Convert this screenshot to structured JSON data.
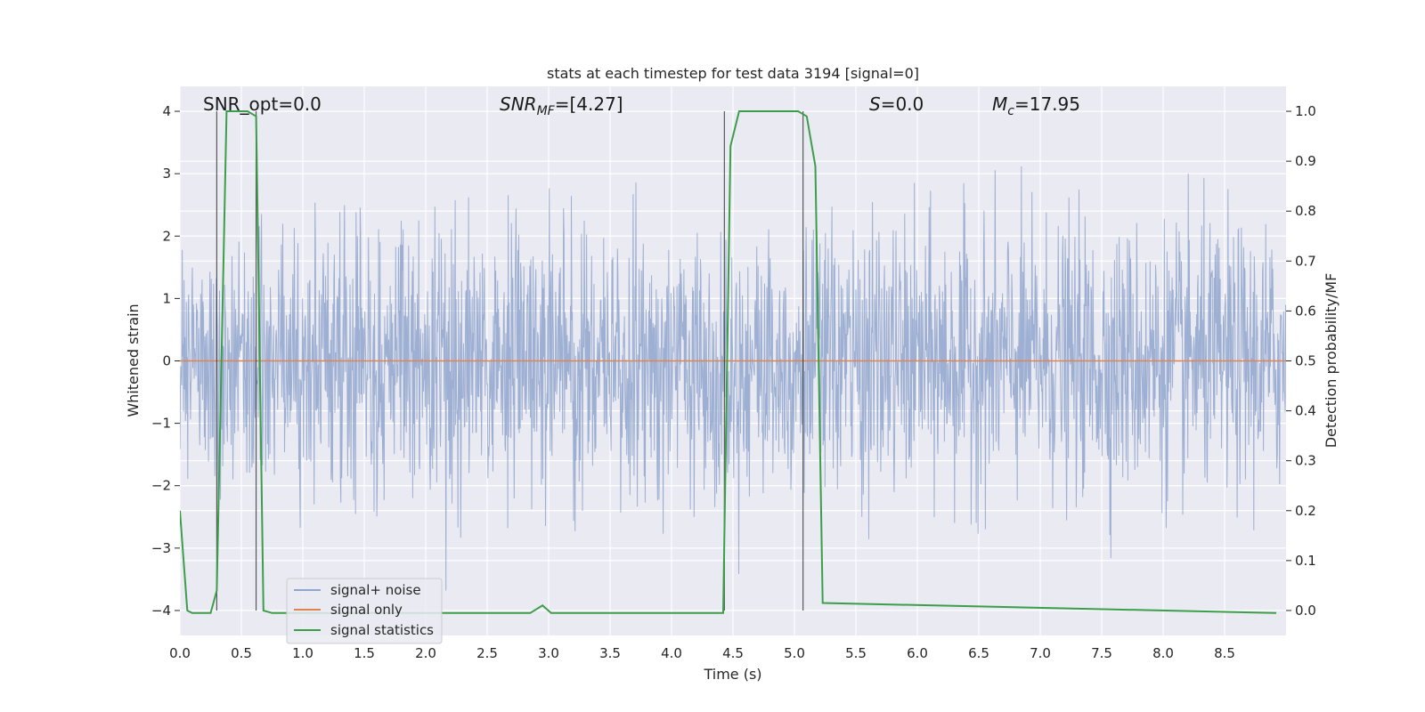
{
  "chart_data": {
    "type": "line",
    "title": "stats at each timestep for test data 3194 [signal=0]",
    "xlabel": "Time (s)",
    "ylabel_left": "Whitened strain",
    "ylabel_right": "Detection probability/MF",
    "xlim": [
      0,
      9.0
    ],
    "ylim_left": [
      -4.4,
      4.4
    ],
    "ylim_right": [
      -0.05,
      1.05
    ],
    "grid": true,
    "x_ticks": [
      "0.0",
      "0.5",
      "1.0",
      "1.5",
      "2.0",
      "2.5",
      "3.0",
      "3.5",
      "4.0",
      "4.5",
      "5.0",
      "5.5",
      "6.0",
      "6.5",
      "7.0",
      "7.5",
      "8.0",
      "8.5"
    ],
    "y_ticks_left": [
      "4",
      "3",
      "2",
      "1",
      "0",
      "−1",
      "−2",
      "−3",
      "−4"
    ],
    "y_ticks_right": [
      "1.0",
      "0.9",
      "0.8",
      "0.7",
      "0.6",
      "0.5",
      "0.4",
      "0.3",
      "0.2",
      "0.1",
      "0.0"
    ],
    "annotations": {
      "snr_opt": "SNR_opt=0.0",
      "snr_mf_main": "SNR",
      "snr_mf_sub": "MF",
      "snr_mf_rest": "=[4.27]",
      "s_main": "S",
      "s_rest": "=0.0",
      "mc_main": "M",
      "mc_sub": "c",
      "mc_rest": "=17.95"
    },
    "vertical_lines_x": [
      0.3,
      0.62,
      4.43,
      5.07
    ],
    "legend": {
      "placement": "lower-left",
      "entries": [
        "signal+ noise",
        "signal only",
        "signal statistics"
      ]
    },
    "series": [
      {
        "name": "signal+ noise",
        "color": "#8fa5cc",
        "description_values": "whitened noisy strain, roughly symmetric around 0, typical amplitude ±1.6 with spikes to ±4"
      },
      {
        "name": "signal only",
        "color": "#dd8452",
        "x": [
          0,
          9.0
        ],
        "y": [
          0,
          0
        ]
      },
      {
        "name": "signal statistics",
        "color": "#3c9e4a",
        "x": [
          0.0,
          0.06,
          0.1,
          0.25,
          0.3,
          0.38,
          0.45,
          0.55,
          0.62,
          0.68,
          0.75,
          2.85,
          2.95,
          3.02,
          4.42,
          4.48,
          4.55,
          5.03,
          5.1,
          5.17,
          5.23,
          8.92
        ],
        "y": [
          0.2,
          0.0,
          -0.005,
          -0.005,
          0.04,
          1.0,
          1.0,
          1.0,
          0.99,
          0.0,
          -0.005,
          -0.005,
          0.01,
          -0.005,
          -0.005,
          0.93,
          1.0,
          1.0,
          0.99,
          0.89,
          0.015,
          -0.005
        ]
      }
    ]
  }
}
